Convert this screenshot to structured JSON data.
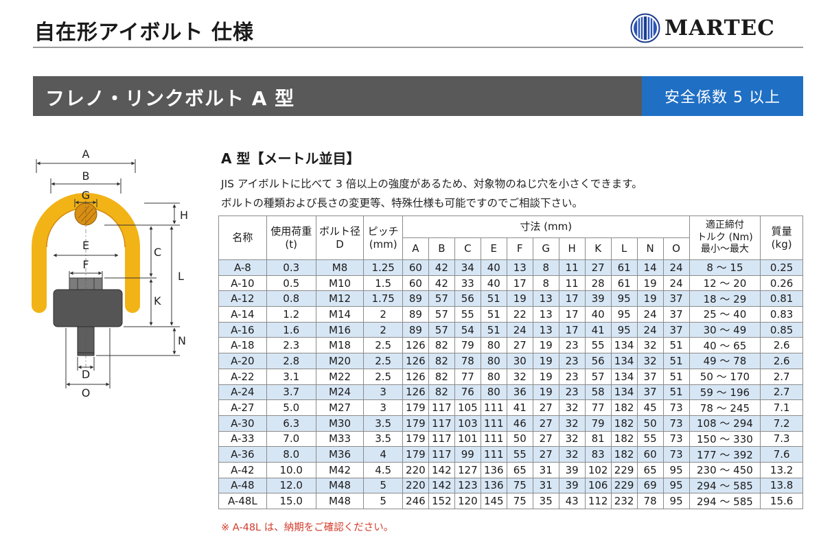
{
  "header": {
    "title": "自在形アイボルト 仕様",
    "brand": "MARTEC"
  },
  "product": {
    "name": "フレノ・リンクボルト A 型",
    "safety": "安全係数 5 以上"
  },
  "diagram": {
    "labels": {
      "A": "A",
      "B": "B",
      "G": "G",
      "H": "H",
      "E": "E",
      "C": "C",
      "F": "F",
      "L": "L",
      "K": "K",
      "N": "N",
      "D": "D",
      "O": "O"
    },
    "colors": {
      "ring": "#f2b316",
      "ring_inner": "#d48a10",
      "body": "#555555",
      "pin": "#5e5e5e",
      "nut": "#7c7c7c"
    }
  },
  "section": {
    "heading": "A 型【メートル並目】",
    "desc1": "JIS アイボルトに比べて 3 倍以上の強度があるため、対象物のねじ穴を小さくできます。",
    "desc2": "ボルトの種類および長さの変更等、特殊仕様も可能ですのでご相談下さい。"
  },
  "table": {
    "headers": {
      "name": "名称",
      "load": "使用荷重",
      "load_unit": "(t)",
      "bolt": "ボルト径",
      "bolt_sub": "D",
      "pitch": "ピッチ",
      "pitch_unit": "(mm)",
      "dims": "寸法 (mm)",
      "torque_l1": "適正締付",
      "torque_l2": "トルク (Nm)",
      "torque_l3": "最小〜最大",
      "mass": "質量",
      "mass_unit": "(kg)",
      "dim_cols": [
        "A",
        "B",
        "C",
        "E",
        "F",
        "G",
        "H",
        "K",
        "L",
        "N",
        "O"
      ]
    },
    "rows": [
      [
        "A-8",
        "0.3",
        "M8",
        "1.25",
        "60",
        "42",
        "34",
        "40",
        "13",
        "8",
        "11",
        "27",
        "61",
        "14",
        "24",
        "8 〜 15",
        "0.25"
      ],
      [
        "A-10",
        "0.5",
        "M10",
        "1.5",
        "60",
        "42",
        "33",
        "40",
        "17",
        "8",
        "11",
        "28",
        "61",
        "19",
        "24",
        "12 〜 20",
        "0.26"
      ],
      [
        "A-12",
        "0.8",
        "M12",
        "1.75",
        "89",
        "57",
        "56",
        "51",
        "19",
        "13",
        "17",
        "39",
        "95",
        "19",
        "37",
        "18 〜 29",
        "0.81"
      ],
      [
        "A-14",
        "1.2",
        "M14",
        "2",
        "89",
        "57",
        "55",
        "51",
        "22",
        "13",
        "17",
        "40",
        "95",
        "24",
        "37",
        "25 〜 40",
        "0.83"
      ],
      [
        "A-16",
        "1.6",
        "M16",
        "2",
        "89",
        "57",
        "54",
        "51",
        "24",
        "13",
        "17",
        "41",
        "95",
        "24",
        "37",
        "30 〜 49",
        "0.85"
      ],
      [
        "A-18",
        "2.3",
        "M18",
        "2.5",
        "126",
        "82",
        "79",
        "80",
        "27",
        "19",
        "23",
        "55",
        "134",
        "32",
        "51",
        "40 〜 65",
        "2.6"
      ],
      [
        "A-20",
        "2.8",
        "M20",
        "2.5",
        "126",
        "82",
        "78",
        "80",
        "30",
        "19",
        "23",
        "56",
        "134",
        "32",
        "51",
        "49 〜 78",
        "2.6"
      ],
      [
        "A-22",
        "3.1",
        "M22",
        "2.5",
        "126",
        "82",
        "77",
        "80",
        "32",
        "19",
        "23",
        "57",
        "134",
        "37",
        "51",
        "50 〜 170",
        "2.7"
      ],
      [
        "A-24",
        "3.7",
        "M24",
        "3",
        "126",
        "82",
        "76",
        "80",
        "36",
        "19",
        "23",
        "58",
        "134",
        "37",
        "51",
        "59 〜 196",
        "2.7"
      ],
      [
        "A-27",
        "5.0",
        "M27",
        "3",
        "179",
        "117",
        "105",
        "111",
        "41",
        "27",
        "32",
        "77",
        "182",
        "45",
        "73",
        "78 〜 245",
        "7.1"
      ],
      [
        "A-30",
        "6.3",
        "M30",
        "3.5",
        "179",
        "117",
        "103",
        "111",
        "46",
        "27",
        "32",
        "79",
        "182",
        "50",
        "73",
        "108 〜 294",
        "7.2"
      ],
      [
        "A-33",
        "7.0",
        "M33",
        "3.5",
        "179",
        "117",
        "101",
        "111",
        "50",
        "27",
        "32",
        "81",
        "182",
        "55",
        "73",
        "150 〜 330",
        "7.3"
      ],
      [
        "A-36",
        "8.0",
        "M36",
        "4",
        "179",
        "117",
        "99",
        "111",
        "55",
        "27",
        "32",
        "83",
        "182",
        "60",
        "73",
        "177 〜 392",
        "7.6"
      ],
      [
        "A-42",
        "10.0",
        "M42",
        "4.5",
        "220",
        "142",
        "127",
        "136",
        "65",
        "31",
        "39",
        "102",
        "229",
        "65",
        "95",
        "230 〜 450",
        "13.2"
      ],
      [
        "A-48",
        "12.0",
        "M48",
        "5",
        "220",
        "142",
        "123",
        "136",
        "75",
        "31",
        "39",
        "106",
        "229",
        "69",
        "95",
        "294 〜 585",
        "13.8"
      ],
      [
        "A-48L",
        "15.0",
        "M48",
        "5",
        "246",
        "152",
        "120",
        "145",
        "75",
        "35",
        "43",
        "112",
        "232",
        "78",
        "95",
        "294 〜 585",
        "15.6"
      ]
    ]
  },
  "footnote": "※ A-48L は、納期をご確認ください。",
  "colors": {
    "accent": "#1f6fc4",
    "bar": "#595959",
    "row_alt": "#d7e6f5",
    "note": "#d23a2a"
  }
}
